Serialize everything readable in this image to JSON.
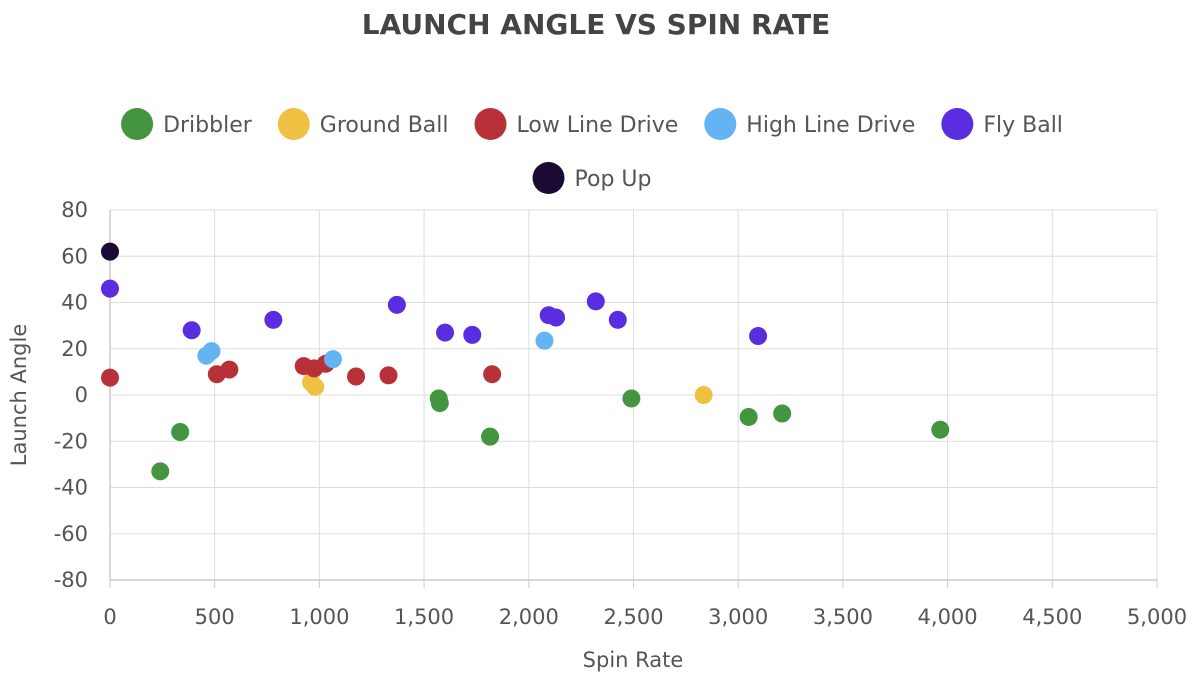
{
  "chart_data": {
    "type": "scatter",
    "title": "LAUNCH ANGLE VS SPIN RATE",
    "xlabel": "Spin Rate",
    "ylabel": "Launch Angle",
    "xlim": [
      0,
      5000
    ],
    "ylim": [
      -80,
      80
    ],
    "x_ticks": [
      0,
      500,
      1000,
      1500,
      2000,
      2500,
      3000,
      3500,
      4000,
      4500,
      5000
    ],
    "x_tick_labels": [
      "0",
      "500",
      "1,000",
      "1,500",
      "2,000",
      "2,500",
      "3,000",
      "3,500",
      "4,000",
      "4,500",
      "5,000"
    ],
    "y_ticks": [
      80,
      60,
      40,
      20,
      0,
      -20,
      -40,
      -60,
      -80
    ],
    "y_tick_labels": [
      "80",
      "60",
      "40",
      "20",
      "0",
      "-20",
      "-40",
      "-60",
      "-80"
    ],
    "grid": true,
    "legend_position": "top-center",
    "series": [
      {
        "name": "Dribbler",
        "color": "#43953f",
        "points": [
          [
            240,
            -33
          ],
          [
            335,
            -16
          ],
          [
            1570,
            -1.5
          ],
          [
            1575,
            -3.5
          ],
          [
            1815,
            -18
          ],
          [
            2490,
            -1.5
          ],
          [
            3050,
            -9.5
          ],
          [
            3210,
            -8
          ],
          [
            3965,
            -15
          ]
        ]
      },
      {
        "name": "Ground Ball",
        "color": "#f0c043",
        "points": [
          [
            960,
            5.5
          ],
          [
            980,
            3.5
          ],
          [
            2835,
            0
          ]
        ]
      },
      {
        "name": "Low Line Drive",
        "color": "#b83138",
        "points": [
          [
            0,
            7.5
          ],
          [
            510,
            9
          ],
          [
            570,
            11
          ],
          [
            925,
            12.5
          ],
          [
            975,
            11.5
          ],
          [
            1030,
            13.5
          ],
          [
            1175,
            8
          ],
          [
            1330,
            8.5
          ],
          [
            1825,
            9
          ]
        ]
      },
      {
        "name": "High Line Drive",
        "color": "#64b4f3",
        "points": [
          [
            460,
            17
          ],
          [
            485,
            19
          ],
          [
            1065,
            15.5
          ],
          [
            2075,
            23.5
          ]
        ]
      },
      {
        "name": "Fly Ball",
        "color": "#5a2ee0",
        "points": [
          [
            0,
            46
          ],
          [
            390,
            28
          ],
          [
            780,
            32.5
          ],
          [
            1370,
            39
          ],
          [
            1600,
            27
          ],
          [
            1730,
            26
          ],
          [
            2095,
            34.5
          ],
          [
            2130,
            33.5
          ],
          [
            2320,
            40.5
          ],
          [
            2425,
            32.5
          ],
          [
            3095,
            25.5
          ]
        ]
      },
      {
        "name": "Pop Up",
        "color": "#1b0a33",
        "points": [
          [
            0,
            62
          ]
        ]
      }
    ]
  }
}
